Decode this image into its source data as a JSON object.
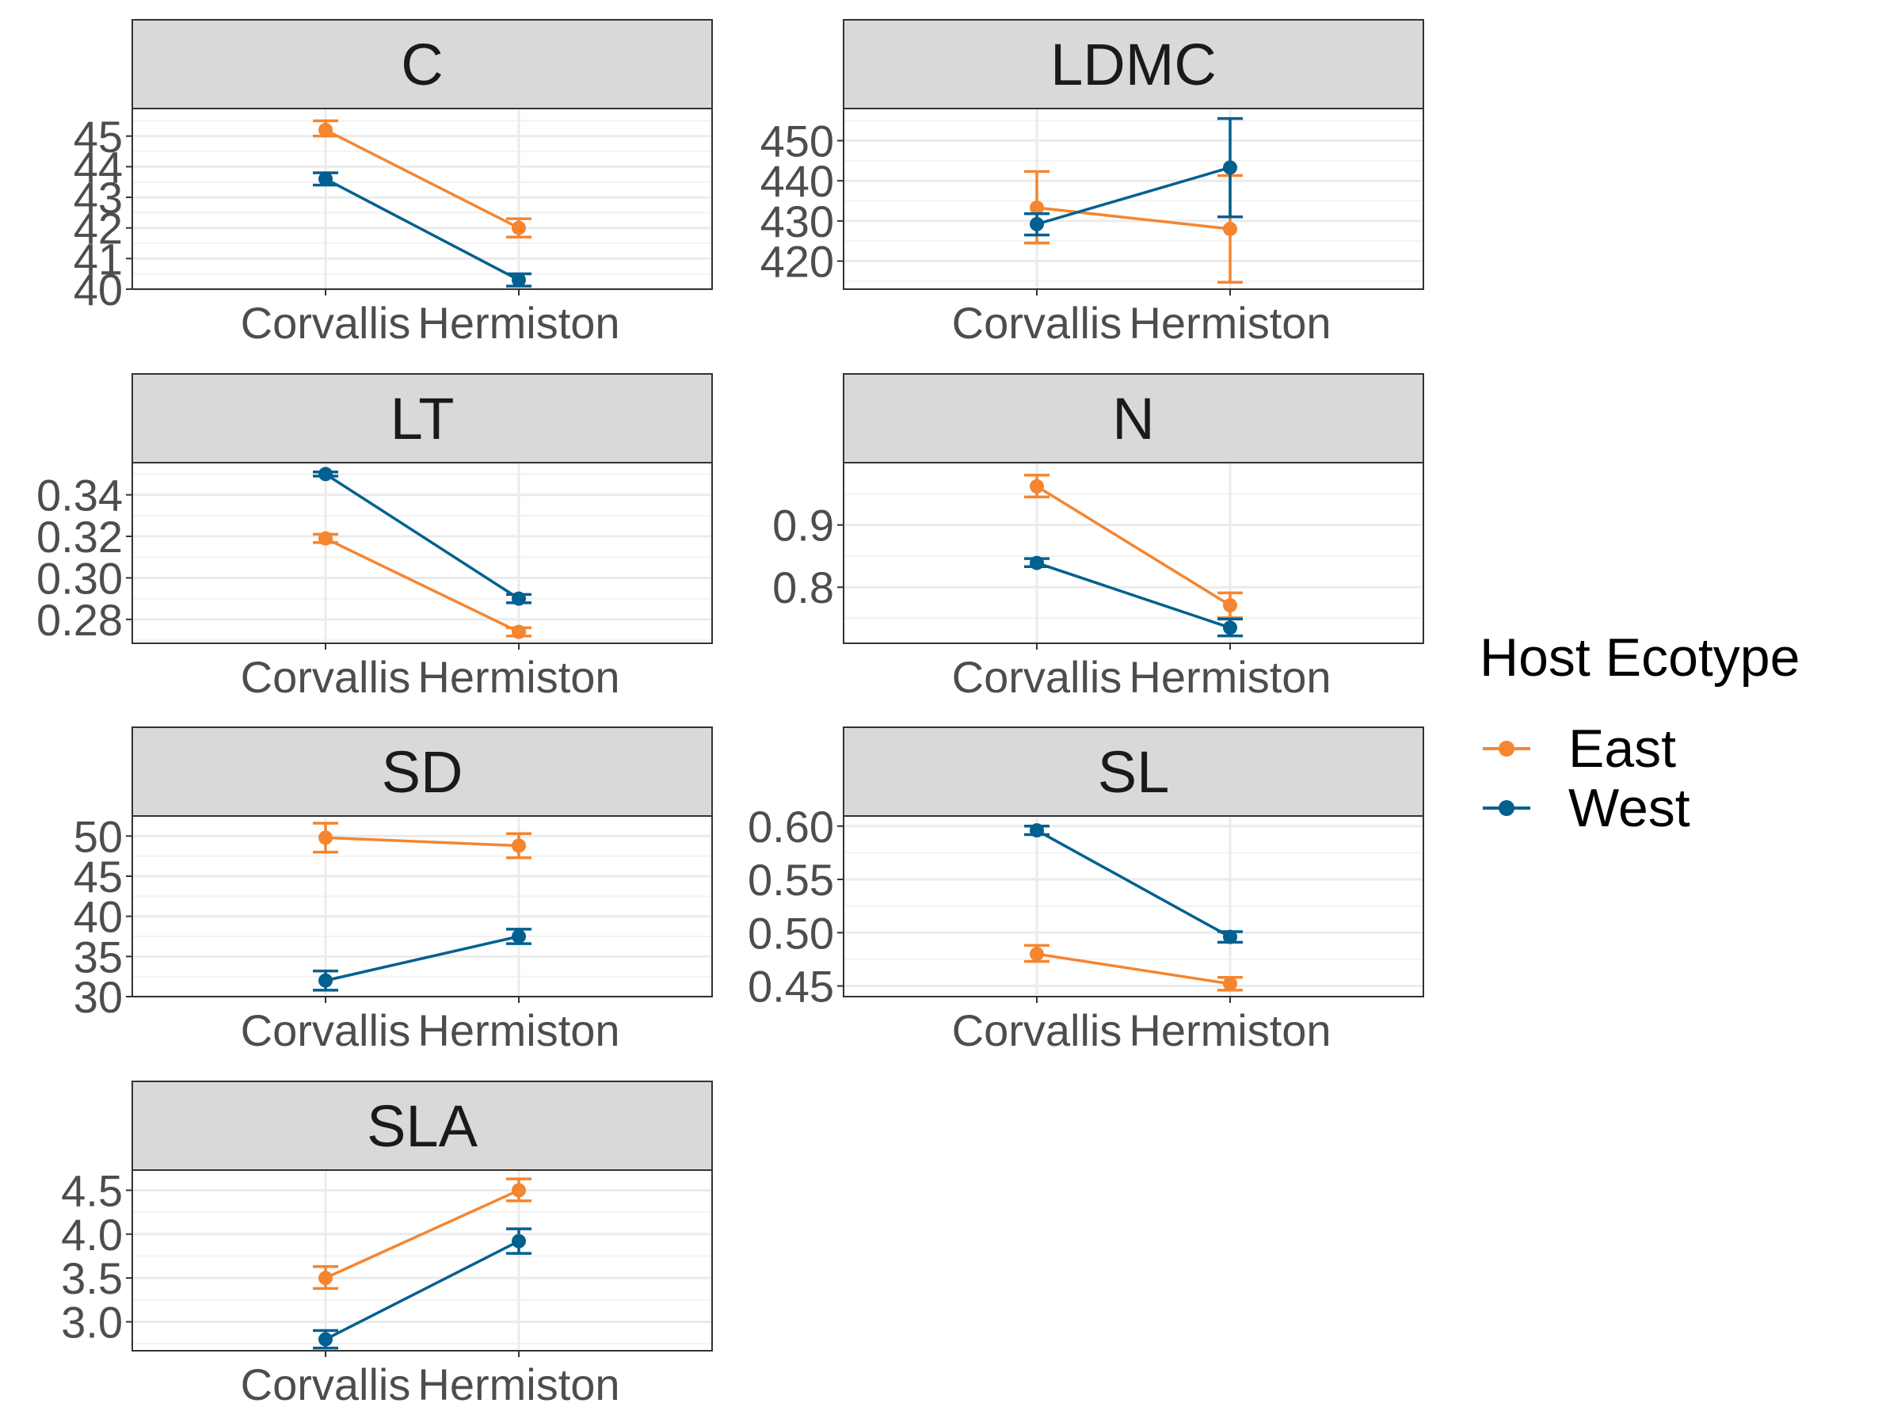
{
  "legend": {
    "title": "Host Ecotype",
    "items": [
      {
        "label": "East",
        "color": "#F5852F"
      },
      {
        "label": "West",
        "color": "#00608F"
      }
    ]
  },
  "chart_data": [
    {
      "type": "line",
      "title": "C",
      "categories": [
        "Corvallis",
        "Hermiston"
      ],
      "ylim": [
        40,
        45.9
      ],
      "yticks": [
        "40",
        "41",
        "42",
        "43",
        "44",
        "45"
      ],
      "series": [
        {
          "name": "East",
          "values": [
            45.2,
            42.0
          ],
          "err_low": [
            45.0,
            41.7
          ],
          "err_high": [
            45.5,
            42.3
          ]
        },
        {
          "name": "West",
          "values": [
            43.6,
            40.3
          ],
          "err_low": [
            43.4,
            40.1
          ],
          "err_high": [
            43.8,
            40.5
          ]
        }
      ]
    },
    {
      "type": "line",
      "title": "LDMC",
      "categories": [
        "Corvallis",
        "Hermiston"
      ],
      "ylim": [
        413,
        458
      ],
      "yticks": [
        "420",
        "430",
        "440",
        "450"
      ],
      "series": [
        {
          "name": "East",
          "values": [
            433.3,
            428.0
          ],
          "err_low": [
            424.5,
            414.7
          ],
          "err_high": [
            442.3,
            441.3
          ]
        },
        {
          "name": "West",
          "values": [
            429.2,
            443.3
          ],
          "err_low": [
            426.5,
            431.0
          ],
          "err_high": [
            431.8,
            455.5
          ]
        }
      ]
    },
    {
      "type": "line",
      "title": "LT",
      "categories": [
        "Corvallis",
        "Hermiston"
      ],
      "ylim": [
        0.2685,
        0.3555
      ],
      "yticks": [
        "0.28",
        "0.30",
        "0.32",
        "0.34"
      ],
      "series": [
        {
          "name": "East",
          "values": [
            0.319,
            0.274
          ],
          "err_low": [
            0.317,
            0.272
          ],
          "err_high": [
            0.321,
            0.276
          ]
        },
        {
          "name": "West",
          "values": [
            0.35,
            0.29
          ],
          "err_low": [
            0.349,
            0.288
          ],
          "err_high": [
            0.351,
            0.292
          ]
        }
      ]
    },
    {
      "type": "line",
      "title": "N",
      "categories": [
        "Corvallis",
        "Hermiston"
      ],
      "ylim": [
        0.71,
        1.0
      ],
      "yticks": [
        "0.8",
        "0.9"
      ],
      "series": [
        {
          "name": "East",
          "values": [
            0.962,
            0.771
          ],
          "err_low": [
            0.945,
            0.751
          ],
          "err_high": [
            0.98,
            0.791
          ]
        },
        {
          "name": "West",
          "values": [
            0.839,
            0.735
          ],
          "err_low": [
            0.833,
            0.722
          ],
          "err_high": [
            0.846,
            0.749
          ]
        }
      ]
    },
    {
      "type": "line",
      "title": "SD",
      "categories": [
        "Corvallis",
        "Hermiston"
      ],
      "ylim": [
        30,
        52.5
      ],
      "yticks": [
        "30",
        "35",
        "40",
        "45",
        "50"
      ],
      "series": [
        {
          "name": "East",
          "values": [
            49.8,
            48.8
          ],
          "err_low": [
            48.0,
            47.3
          ],
          "err_high": [
            51.6,
            50.3
          ]
        },
        {
          "name": "West",
          "values": [
            32.0,
            37.5
          ],
          "err_low": [
            30.8,
            36.6
          ],
          "err_high": [
            33.2,
            38.4
          ]
        }
      ]
    },
    {
      "type": "line",
      "title": "SL",
      "categories": [
        "Corvallis",
        "Hermiston"
      ],
      "ylim": [
        0.44,
        0.6095
      ],
      "yticks": [
        "0.45",
        "0.50",
        "0.55",
        "0.60"
      ],
      "series": [
        {
          "name": "East",
          "values": [
            0.48,
            0.452
          ],
          "err_low": [
            0.473,
            0.446
          ],
          "err_high": [
            0.488,
            0.458
          ]
        },
        {
          "name": "West",
          "values": [
            0.596,
            0.496
          ],
          "err_low": [
            0.592,
            0.491
          ],
          "err_high": [
            0.6,
            0.501
          ]
        }
      ]
    },
    {
      "type": "line",
      "title": "SLA",
      "categories": [
        "Corvallis",
        "Hermiston"
      ],
      "ylim": [
        2.67,
        4.73
      ],
      "yticks": [
        "3.0",
        "3.5",
        "4.0",
        "4.5"
      ],
      "series": [
        {
          "name": "East",
          "values": [
            3.5,
            4.5
          ],
          "err_low": [
            3.38,
            4.38
          ],
          "err_high": [
            3.63,
            4.63
          ]
        },
        {
          "name": "West",
          "values": [
            2.8,
            3.92
          ],
          "err_low": [
            2.7,
            3.78
          ],
          "err_high": [
            2.9,
            4.06
          ]
        }
      ]
    }
  ]
}
